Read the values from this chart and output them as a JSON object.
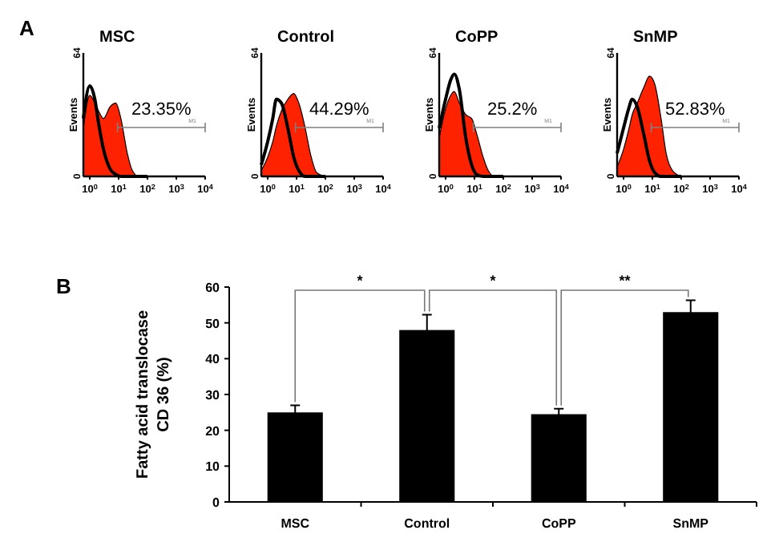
{
  "chart_data": [
    {
      "type": "area",
      "title": "MSC",
      "ylabel": "Events",
      "annotations": [
        "A",
        "23.35%",
        "M1"
      ],
      "log": "x",
      "xlim": [
        0.6,
        10000
      ],
      "ylim": [
        0,
        64
      ],
      "yticks": [
        0,
        64
      ],
      "xticks": [
        {
          "value": 1,
          "label": "10$^{0}$"
        },
        {
          "value": 10,
          "label": "10$^{1}$"
        },
        {
          "value": 100,
          "label": "10$^{2}$"
        },
        {
          "value": 1000,
          "label": "10$^{3}$"
        },
        {
          "value": 10000,
          "label": "10$^{4}$"
        }
      ],
      "x": [
        0.6,
        1,
        1.5,
        2,
        3,
        5,
        8,
        12,
        20,
        30,
        50,
        100
      ],
      "series": [
        {
          "type": "area",
          "color": "#ff2200",
          "values": [
            25,
            42,
            38,
            34,
            30,
            36,
            38,
            30,
            12,
            3,
            0,
            0
          ]
        },
        {
          "type": "line",
          "color": "#000000",
          "values": [
            30,
            47,
            40,
            28,
            14,
            4,
            1,
            0,
            0,
            0,
            0,
            0
          ]
        }
      ]
    },
    {
      "type": "area",
      "title": "Control",
      "ylabel": "Events",
      "annotations": [
        "44.29%",
        "M1"
      ],
      "log": "x",
      "xlim": [
        0.6,
        10000
      ],
      "ylim": [
        0,
        64
      ],
      "yticks": [
        0,
        64
      ],
      "xticks": [
        {
          "value": 1,
          "label": "10$^{0}$"
        },
        {
          "value": 10,
          "label": "10$^{1}$"
        },
        {
          "value": 100,
          "label": "10$^{2}$"
        },
        {
          "value": 1000,
          "label": "10$^{3}$"
        },
        {
          "value": 10000,
          "label": "10$^{4}$"
        }
      ],
      "x": [
        0.6,
        1,
        1.5,
        2,
        3,
        5,
        8,
        12,
        20,
        30,
        50,
        100
      ],
      "series": [
        {
          "type": "area",
          "color": "#ff2200",
          "values": [
            3,
            10,
            18,
            26,
            34,
            40,
            43,
            38,
            25,
            12,
            2,
            0
          ]
        },
        {
          "type": "line",
          "color": "#000000",
          "values": [
            6,
            18,
            30,
            40,
            38,
            25,
            10,
            3,
            0,
            0,
            0,
            0
          ]
        }
      ]
    },
    {
      "type": "area",
      "title": "CoPP",
      "ylabel": "Events",
      "annotations": [
        "25.2%",
        "M1"
      ],
      "log": "x",
      "xlim": [
        0.6,
        10000
      ],
      "ylim": [
        0,
        64
      ],
      "yticks": [
        0,
        64
      ],
      "xticks": [
        {
          "value": 1,
          "label": "10$^{0}$"
        },
        {
          "value": 10,
          "label": "10$^{1}$"
        },
        {
          "value": 100,
          "label": "10$^{2}$"
        },
        {
          "value": 1000,
          "label": "10$^{3}$"
        },
        {
          "value": 10000,
          "label": "10$^{4}$"
        }
      ],
      "x": [
        0.6,
        1,
        1.5,
        2,
        3,
        5,
        8,
        12,
        20,
        30,
        50,
        100
      ],
      "series": [
        {
          "type": "area",
          "color": "#ff2200",
          "values": [
            20,
            35,
            42,
            44,
            38,
            32,
            30,
            22,
            10,
            3,
            0,
            0
          ]
        },
        {
          "type": "line",
          "color": "#000000",
          "values": [
            25,
            40,
            50,
            53,
            45,
            20,
            6,
            1,
            0,
            0,
            0,
            0
          ]
        }
      ]
    },
    {
      "type": "area",
      "title": "SnMP",
      "ylabel": "Events",
      "annotations": [
        "52.83%",
        "M1"
      ],
      "log": "x",
      "xlim": [
        0.6,
        10000
      ],
      "ylim": [
        0,
        64
      ],
      "yticks": [
        0,
        64
      ],
      "xticks": [
        {
          "value": 1,
          "label": "10$^{0}$"
        },
        {
          "value": 10,
          "label": "10$^{1}$"
        },
        {
          "value": 100,
          "label": "10$^{2}$"
        },
        {
          "value": 1000,
          "label": "10$^{3}$"
        },
        {
          "value": 10000,
          "label": "10$^{4}$"
        }
      ],
      "x": [
        0.6,
        1,
        1.5,
        2,
        3,
        5,
        8,
        12,
        20,
        30,
        50,
        100
      ],
      "series": [
        {
          "type": "area",
          "color": "#ff2200",
          "values": [
            5,
            14,
            24,
            32,
            38,
            46,
            52,
            48,
            30,
            12,
            3,
            0
          ]
        },
        {
          "type": "line",
          "color": "#000000",
          "values": [
            12,
            25,
            35,
            40,
            36,
            22,
            8,
            2,
            0,
            0,
            0,
            0
          ]
        }
      ]
    },
    {
      "type": "bar",
      "ylabel": "Fatty acid translocase CD 36 (%)",
      "annotations": [
        "B",
        "*",
        "*",
        "**"
      ],
      "categories": [
        "MSC",
        "Control",
        "CoPP",
        "SnMP"
      ],
      "values": [
        25,
        48,
        24.5,
        53
      ],
      "errors": [
        2,
        4.3,
        1.5,
        3.3
      ],
      "color": "#000000",
      "ylim": [
        0,
        60
      ],
      "yticks": [
        0,
        10,
        20,
        30,
        40,
        50,
        60
      ]
    }
  ]
}
